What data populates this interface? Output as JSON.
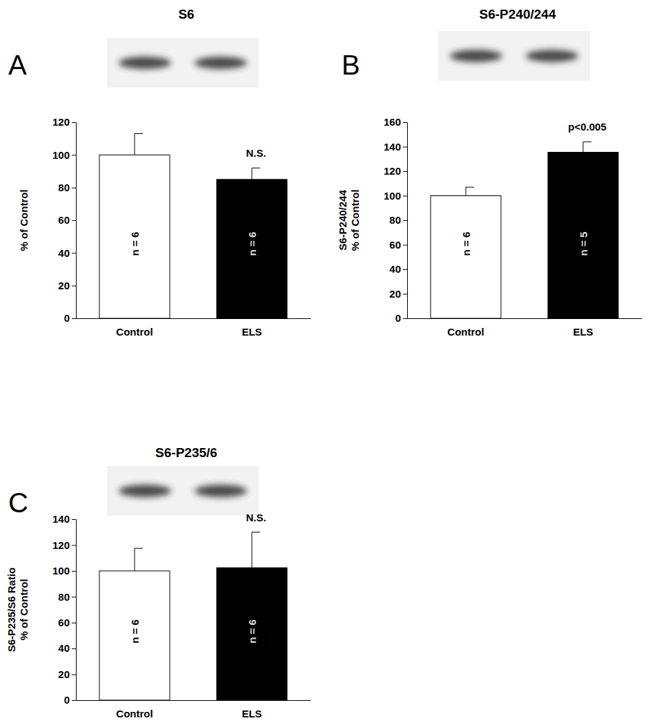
{
  "chart_data": [
    {
      "type": "bar",
      "panel": "A",
      "title": "S6",
      "categories": [
        "Control",
        "ELS"
      ],
      "values": [
        100,
        85
      ],
      "errors": [
        13,
        7
      ],
      "colors": [
        "#ffffff",
        "#000000"
      ],
      "n_labels": [
        "n = 6",
        "n = 6"
      ],
      "annotation": "N.S.",
      "y_label": [
        "% of Control"
      ],
      "ylim": [
        0,
        120
      ],
      "yticks": [
        0,
        20,
        40,
        60,
        80,
        100,
        120
      ]
    },
    {
      "type": "bar",
      "panel": "B",
      "title": "S6-P240/244",
      "categories": [
        "Control",
        "ELS"
      ],
      "values": [
        100,
        135.5
      ],
      "errors": [
        7,
        8.5
      ],
      "colors": [
        "#ffffff",
        "#000000"
      ],
      "n_labels": [
        "n = 6",
        "n = 5"
      ],
      "annotation": "p<0.005",
      "y_label": [
        "S6-P240/244",
        "% of Control"
      ],
      "ylim": [
        0,
        160
      ],
      "yticks": [
        0,
        20,
        40,
        60,
        80,
        100,
        120,
        140,
        160
      ]
    },
    {
      "type": "bar",
      "panel": "C",
      "title": "S6-P235/6",
      "categories": [
        "Control",
        "ELS"
      ],
      "values": [
        100,
        102.5
      ],
      "errors": [
        17.5,
        27.5
      ],
      "colors": [
        "#ffffff",
        "#000000"
      ],
      "n_labels": [
        "n = 6",
        "n = 6"
      ],
      "annotation": "N.S.",
      "y_label": [
        "S6-P235/S6 Ratio",
        "% of Control"
      ],
      "ylim": [
        0,
        140
      ],
      "yticks": [
        0,
        20,
        40,
        60,
        80,
        100,
        120,
        140
      ]
    }
  ]
}
